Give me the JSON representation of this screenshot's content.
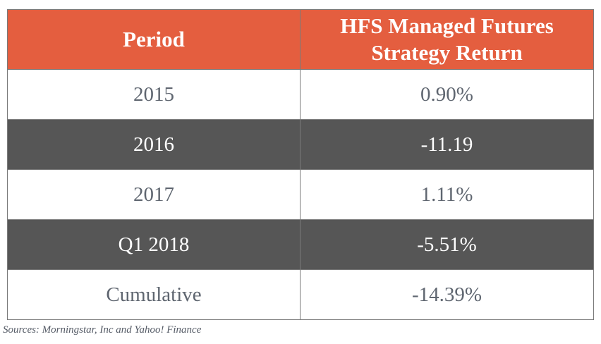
{
  "table": {
    "headers": {
      "period": "Period",
      "return_line1": "HFS Managed Futures",
      "return_line2": "Strategy Return"
    },
    "rows": [
      {
        "period": "2015",
        "return": "0.90%",
        "style": "light"
      },
      {
        "period": "2016",
        "return": "-11.19",
        "style": "dark"
      },
      {
        "period": "2017",
        "return": "1.11%",
        "style": "light"
      },
      {
        "period": "Q1 2018",
        "return": "-5.51%",
        "style": "dark"
      },
      {
        "period": "Cumulative",
        "return": "-14.39%",
        "style": "light"
      }
    ]
  },
  "footer": {
    "source": "Sources: Morningstar, Inc and Yahoo! Finance"
  },
  "colors": {
    "header_bg": "#e45e3f",
    "dark_row_bg": "#565656",
    "light_row_text": "#5f6670"
  }
}
